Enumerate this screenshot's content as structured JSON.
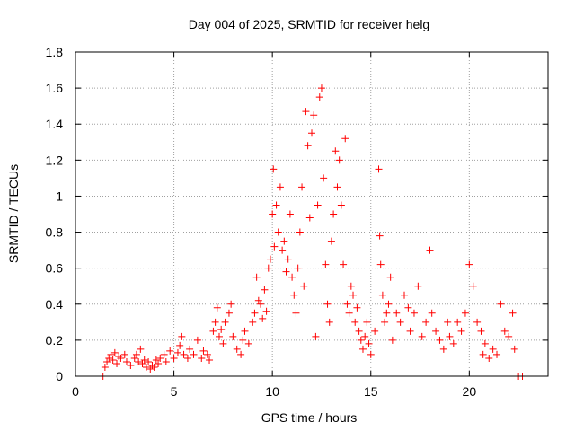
{
  "chart_data": {
    "type": "scatter",
    "title": "Day 004 of 2025, SRMTID for receiver helg",
    "xlabel": "GPS time / hours",
    "ylabel": "SRMTID / TECUs",
    "xlim": [
      0,
      24
    ],
    "ylim": [
      0,
      1.8
    ],
    "x_ticks": [
      0,
      5,
      10,
      15,
      20
    ],
    "x_tick_labels": [
      "0",
      "5",
      "10",
      "15",
      "20"
    ],
    "y_ticks": [
      0,
      0.2,
      0.4,
      0.6,
      0.8,
      1.0,
      1.2,
      1.4,
      1.6,
      1.8
    ],
    "y_tick_labels": [
      "0",
      "0.2",
      "0.4",
      "0.6",
      "0.8",
      "1",
      "1.2",
      "1.4",
      "1.6",
      "1.8"
    ],
    "grid": true,
    "marker": "+",
    "series": [
      {
        "name": "SRMTID",
        "color": "#ff0000",
        "points": [
          [
            1.4,
            0.0
          ],
          [
            1.5,
            0.05
          ],
          [
            1.6,
            0.08
          ],
          [
            1.7,
            0.1
          ],
          [
            1.8,
            0.12
          ],
          [
            1.9,
            0.09
          ],
          [
            2.0,
            0.13
          ],
          [
            2.1,
            0.07
          ],
          [
            2.2,
            0.11
          ],
          [
            2.3,
            0.1
          ],
          [
            2.5,
            0.12
          ],
          [
            2.6,
            0.08
          ],
          [
            2.8,
            0.06
          ],
          [
            3.0,
            0.1
          ],
          [
            3.1,
            0.12
          ],
          [
            3.2,
            0.08
          ],
          [
            3.3,
            0.15
          ],
          [
            3.4,
            0.07
          ],
          [
            3.5,
            0.09
          ],
          [
            3.6,
            0.05
          ],
          [
            3.7,
            0.08
          ],
          [
            3.8,
            0.04
          ],
          [
            3.9,
            0.06
          ],
          [
            4.0,
            0.05
          ],
          [
            4.1,
            0.09
          ],
          [
            4.2,
            0.07
          ],
          [
            4.3,
            0.1
          ],
          [
            4.5,
            0.12
          ],
          [
            4.6,
            0.08
          ],
          [
            4.8,
            0.14
          ],
          [
            5.0,
            0.1
          ],
          [
            5.2,
            0.13
          ],
          [
            5.3,
            0.17
          ],
          [
            5.4,
            0.22
          ],
          [
            5.5,
            0.12
          ],
          [
            5.7,
            0.1
          ],
          [
            5.8,
            0.15
          ],
          [
            6.0,
            0.12
          ],
          [
            6.2,
            0.2
          ],
          [
            6.4,
            0.1
          ],
          [
            6.5,
            0.14
          ],
          [
            6.7,
            0.12
          ],
          [
            6.8,
            0.09
          ],
          [
            7.0,
            0.25
          ],
          [
            7.1,
            0.3
          ],
          [
            7.2,
            0.38
          ],
          [
            7.3,
            0.22
          ],
          [
            7.4,
            0.26
          ],
          [
            7.5,
            0.18
          ],
          [
            7.6,
            0.3
          ],
          [
            7.8,
            0.35
          ],
          [
            7.9,
            0.4
          ],
          [
            8.0,
            0.22
          ],
          [
            8.2,
            0.15
          ],
          [
            8.4,
            0.12
          ],
          [
            8.5,
            0.2
          ],
          [
            8.6,
            0.25
          ],
          [
            8.8,
            0.18
          ],
          [
            9.0,
            0.3
          ],
          [
            9.1,
            0.35
          ],
          [
            9.2,
            0.55
          ],
          [
            9.3,
            0.42
          ],
          [
            9.4,
            0.4
          ],
          [
            9.5,
            0.32
          ],
          [
            9.6,
            0.48
          ],
          [
            9.7,
            0.36
          ],
          [
            9.8,
            0.6
          ],
          [
            9.9,
            0.65
          ],
          [
            10.0,
            0.9
          ],
          [
            10.05,
            1.15
          ],
          [
            10.1,
            0.72
          ],
          [
            10.2,
            0.95
          ],
          [
            10.3,
            0.8
          ],
          [
            10.4,
            1.05
          ],
          [
            10.5,
            0.7
          ],
          [
            10.6,
            0.75
          ],
          [
            10.7,
            0.58
          ],
          [
            10.8,
            0.65
          ],
          [
            10.9,
            0.9
          ],
          [
            11.0,
            0.55
          ],
          [
            11.1,
            0.45
          ],
          [
            11.2,
            0.35
          ],
          [
            11.3,
            0.6
          ],
          [
            11.4,
            0.8
          ],
          [
            11.5,
            1.05
          ],
          [
            11.6,
            0.5
          ],
          [
            11.7,
            1.47
          ],
          [
            11.8,
            1.28
          ],
          [
            11.9,
            0.88
          ],
          [
            12.0,
            1.35
          ],
          [
            12.1,
            1.45
          ],
          [
            12.2,
            0.22
          ],
          [
            12.3,
            0.95
          ],
          [
            12.4,
            1.55
          ],
          [
            12.5,
            1.6
          ],
          [
            12.6,
            1.1
          ],
          [
            12.7,
            0.62
          ],
          [
            12.8,
            0.4
          ],
          [
            12.9,
            0.3
          ],
          [
            13.0,
            0.75
          ],
          [
            13.1,
            0.9
          ],
          [
            13.2,
            1.25
          ],
          [
            13.3,
            1.05
          ],
          [
            13.4,
            1.2
          ],
          [
            13.5,
            0.95
          ],
          [
            13.6,
            0.62
          ],
          [
            13.7,
            1.32
          ],
          [
            13.8,
            0.4
          ],
          [
            13.9,
            0.35
          ],
          [
            14.0,
            0.5
          ],
          [
            14.1,
            0.45
          ],
          [
            14.2,
            0.3
          ],
          [
            14.3,
            0.38
          ],
          [
            14.4,
            0.25
          ],
          [
            14.5,
            0.2
          ],
          [
            14.6,
            0.15
          ],
          [
            14.7,
            0.22
          ],
          [
            14.8,
            0.3
          ],
          [
            14.9,
            0.18
          ],
          [
            15.0,
            0.12
          ],
          [
            15.2,
            0.25
          ],
          [
            15.4,
            1.15
          ],
          [
            15.45,
            0.78
          ],
          [
            15.5,
            0.62
          ],
          [
            15.6,
            0.45
          ],
          [
            15.7,
            0.3
          ],
          [
            15.8,
            0.35
          ],
          [
            15.9,
            0.4
          ],
          [
            16.0,
            0.55
          ],
          [
            16.1,
            0.2
          ],
          [
            16.3,
            0.35
          ],
          [
            16.5,
            0.3
          ],
          [
            16.7,
            0.45
          ],
          [
            16.9,
            0.38
          ],
          [
            17.0,
            0.25
          ],
          [
            17.2,
            0.35
          ],
          [
            17.4,
            0.5
          ],
          [
            17.6,
            0.22
          ],
          [
            17.8,
            0.3
          ],
          [
            18.0,
            0.7
          ],
          [
            18.1,
            0.35
          ],
          [
            18.3,
            0.25
          ],
          [
            18.5,
            0.2
          ],
          [
            18.7,
            0.15
          ],
          [
            18.9,
            0.3
          ],
          [
            19.0,
            0.22
          ],
          [
            19.2,
            0.18
          ],
          [
            19.4,
            0.3
          ],
          [
            19.6,
            0.25
          ],
          [
            19.8,
            0.35
          ],
          [
            20.0,
            0.62
          ],
          [
            20.2,
            0.5
          ],
          [
            20.4,
            0.3
          ],
          [
            20.6,
            0.25
          ],
          [
            20.7,
            0.12
          ],
          [
            20.8,
            0.18
          ],
          [
            21.0,
            0.1
          ],
          [
            21.2,
            0.15
          ],
          [
            21.4,
            0.12
          ],
          [
            21.6,
            0.4
          ],
          [
            21.8,
            0.25
          ],
          [
            22.0,
            0.22
          ],
          [
            22.2,
            0.35
          ],
          [
            22.3,
            0.15
          ],
          [
            22.5,
            0.0
          ],
          [
            22.7,
            0.0
          ]
        ]
      }
    ]
  }
}
